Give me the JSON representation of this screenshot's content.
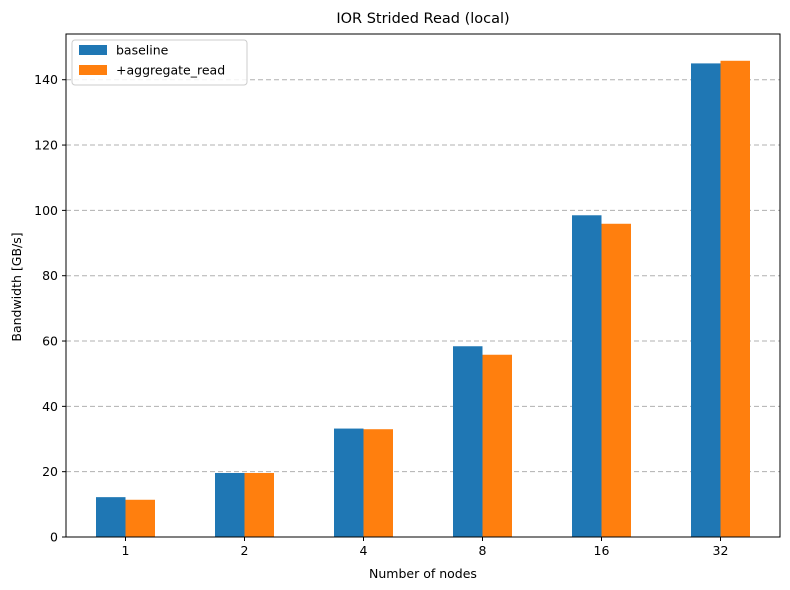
{
  "chart_data": {
    "type": "bar",
    "title": "IOR Strided Read (local)",
    "xlabel": "Number of nodes",
    "ylabel": "Bandwidth [GB/s]",
    "categories": [
      "1",
      "2",
      "4",
      "8",
      "16",
      "32"
    ],
    "series": [
      {
        "name": "baseline",
        "color": "#1f77b4",
        "values": [
          12.2,
          19.6,
          33.2,
          58.4,
          98.5,
          145.0
        ]
      },
      {
        "name": "+aggregate_read",
        "color": "#ff7f0e",
        "values": [
          11.4,
          19.6,
          33.0,
          55.8,
          95.9,
          145.8
        ]
      }
    ],
    "ylim": [
      0,
      154
    ],
    "yticks": [
      0,
      20,
      40,
      60,
      80,
      100,
      120,
      140
    ],
    "grid": "y-dashed",
    "legend_position": "top-left"
  }
}
